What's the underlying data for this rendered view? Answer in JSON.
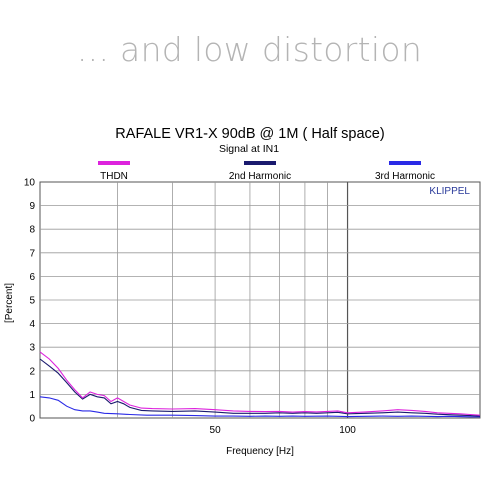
{
  "headline": "... and low distortion",
  "chart_data": {
    "type": "line",
    "title": "RAFALE VR1-X  90dB @ 1M ( Half space)",
    "subtitle": "Signal at IN1",
    "xlabel": "Frequency [Hz]",
    "ylabel": "[Percent]",
    "watermark": "KLIPPEL",
    "x_scale": "log",
    "xlim": [
      20,
      200
    ],
    "ylim": [
      0,
      10
    ],
    "x_ticks": [
      {
        "value": 50,
        "label": "50"
      },
      {
        "value": 100,
        "label": "100"
      }
    ],
    "y_ticks": [
      "0",
      "1",
      "2",
      "3",
      "4",
      "5",
      "6",
      "7",
      "8",
      "9",
      "10"
    ],
    "grid": true,
    "legend_position": "top",
    "series": [
      {
        "name": "THDN",
        "color": "#dd22dd",
        "points": [
          [
            20,
            2.8
          ],
          [
            21,
            2.5
          ],
          [
            22,
            2.1
          ],
          [
            23,
            1.6
          ],
          [
            24,
            1.2
          ],
          [
            25,
            0.85
          ],
          [
            26,
            1.1
          ],
          [
            27,
            1.0
          ],
          [
            28,
            0.95
          ],
          [
            29,
            0.7
          ],
          [
            30,
            0.85
          ],
          [
            31,
            0.7
          ],
          [
            32,
            0.55
          ],
          [
            34,
            0.42
          ],
          [
            36,
            0.4
          ],
          [
            40,
            0.38
          ],
          [
            45,
            0.4
          ],
          [
            50,
            0.35
          ],
          [
            55,
            0.3
          ],
          [
            60,
            0.28
          ],
          [
            65,
            0.27
          ],
          [
            70,
            0.28
          ],
          [
            75,
            0.25
          ],
          [
            80,
            0.27
          ],
          [
            85,
            0.26
          ],
          [
            90,
            0.28
          ],
          [
            95,
            0.3
          ],
          [
            100,
            0.22
          ],
          [
            110,
            0.26
          ],
          [
            120,
            0.3
          ],
          [
            130,
            0.35
          ],
          [
            140,
            0.32
          ],
          [
            150,
            0.28
          ],
          [
            160,
            0.22
          ],
          [
            170,
            0.2
          ],
          [
            180,
            0.18
          ],
          [
            190,
            0.15
          ],
          [
            200,
            0.12
          ]
        ]
      },
      {
        "name": "2nd Harmonic",
        "color": "#1a1a6e",
        "points": [
          [
            20,
            2.5
          ],
          [
            21,
            2.2
          ],
          [
            22,
            1.9
          ],
          [
            23,
            1.5
          ],
          [
            24,
            1.1
          ],
          [
            25,
            0.8
          ],
          [
            26,
            1.0
          ],
          [
            27,
            0.9
          ],
          [
            28,
            0.85
          ],
          [
            29,
            0.6
          ],
          [
            30,
            0.7
          ],
          [
            31,
            0.6
          ],
          [
            32,
            0.45
          ],
          [
            34,
            0.32
          ],
          [
            36,
            0.3
          ],
          [
            40,
            0.28
          ],
          [
            45,
            0.3
          ],
          [
            50,
            0.25
          ],
          [
            55,
            0.2
          ],
          [
            60,
            0.2
          ],
          [
            65,
            0.2
          ],
          [
            70,
            0.22
          ],
          [
            75,
            0.2
          ],
          [
            80,
            0.22
          ],
          [
            85,
            0.2
          ],
          [
            90,
            0.22
          ],
          [
            95,
            0.24
          ],
          [
            100,
            0.18
          ],
          [
            110,
            0.2
          ],
          [
            120,
            0.22
          ],
          [
            130,
            0.25
          ],
          [
            140,
            0.22
          ],
          [
            150,
            0.2
          ],
          [
            160,
            0.16
          ],
          [
            170,
            0.14
          ],
          [
            180,
            0.12
          ],
          [
            190,
            0.1
          ],
          [
            200,
            0.08
          ]
        ]
      },
      {
        "name": "3rd Harmonic",
        "color": "#2a2ae6",
        "points": [
          [
            20,
            0.9
          ],
          [
            21,
            0.85
          ],
          [
            22,
            0.75
          ],
          [
            23,
            0.5
          ],
          [
            24,
            0.35
          ],
          [
            25,
            0.3
          ],
          [
            26,
            0.3
          ],
          [
            27,
            0.25
          ],
          [
            28,
            0.2
          ],
          [
            30,
            0.18
          ],
          [
            32,
            0.15
          ],
          [
            35,
            0.12
          ],
          [
            40,
            0.12
          ],
          [
            45,
            0.1
          ],
          [
            50,
            0.08
          ],
          [
            55,
            0.08
          ],
          [
            60,
            0.07
          ],
          [
            65,
            0.08
          ],
          [
            70,
            0.07
          ],
          [
            75,
            0.08
          ],
          [
            80,
            0.07
          ],
          [
            90,
            0.08
          ],
          [
            100,
            0.06
          ],
          [
            110,
            0.07
          ],
          [
            120,
            0.08
          ],
          [
            130,
            0.07
          ],
          [
            140,
            0.08
          ],
          [
            150,
            0.07
          ],
          [
            160,
            0.06
          ],
          [
            170,
            0.07
          ],
          [
            180,
            0.06
          ],
          [
            190,
            0.05
          ],
          [
            200,
            0.05
          ]
        ]
      }
    ]
  }
}
